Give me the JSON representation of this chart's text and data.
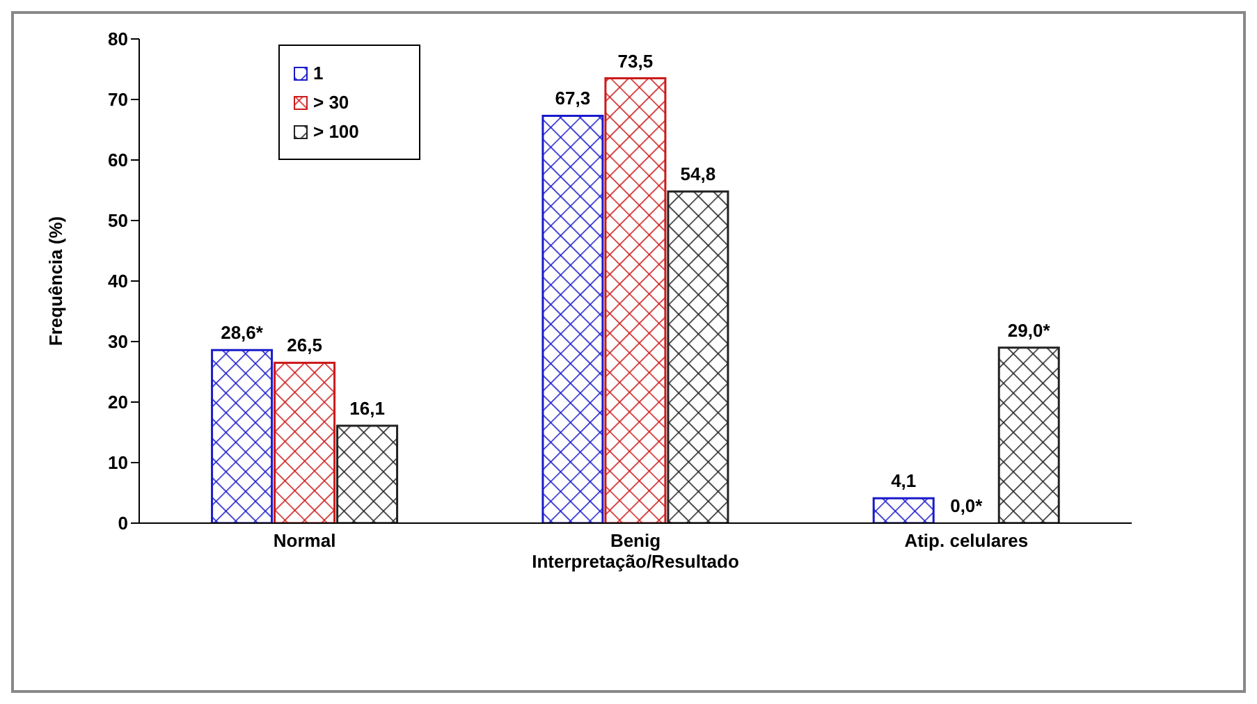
{
  "chart_data": {
    "type": "bar",
    "xlabel": "Interpretação/Resultado",
    "ylabel": "Frequência (%)",
    "categories": [
      "Normal",
      "Benig",
      "Atip. celulares"
    ],
    "series": [
      {
        "name": "1",
        "color": "#1a1acc",
        "values": [
          28.6,
          67.3,
          4.1
        ],
        "value_labels": [
          "28,6*",
          "67,3",
          "4,1"
        ]
      },
      {
        "name": "> 30",
        "color": "#cc1a1a",
        "values": [
          26.5,
          73.5,
          0.0
        ],
        "value_labels": [
          "26,5",
          "73,5",
          "0,0*"
        ]
      },
      {
        "name": "> 100",
        "color": "#222222",
        "values": [
          16.1,
          54.8,
          29.0
        ],
        "value_labels": [
          "16,1",
          "54,8",
          "29,0*"
        ]
      }
    ],
    "ylim": [
      0,
      80
    ],
    "yticks": [
      0,
      10,
      20,
      30,
      40,
      50,
      60,
      70,
      80
    ],
    "grid": false,
    "legend": "top left"
  }
}
